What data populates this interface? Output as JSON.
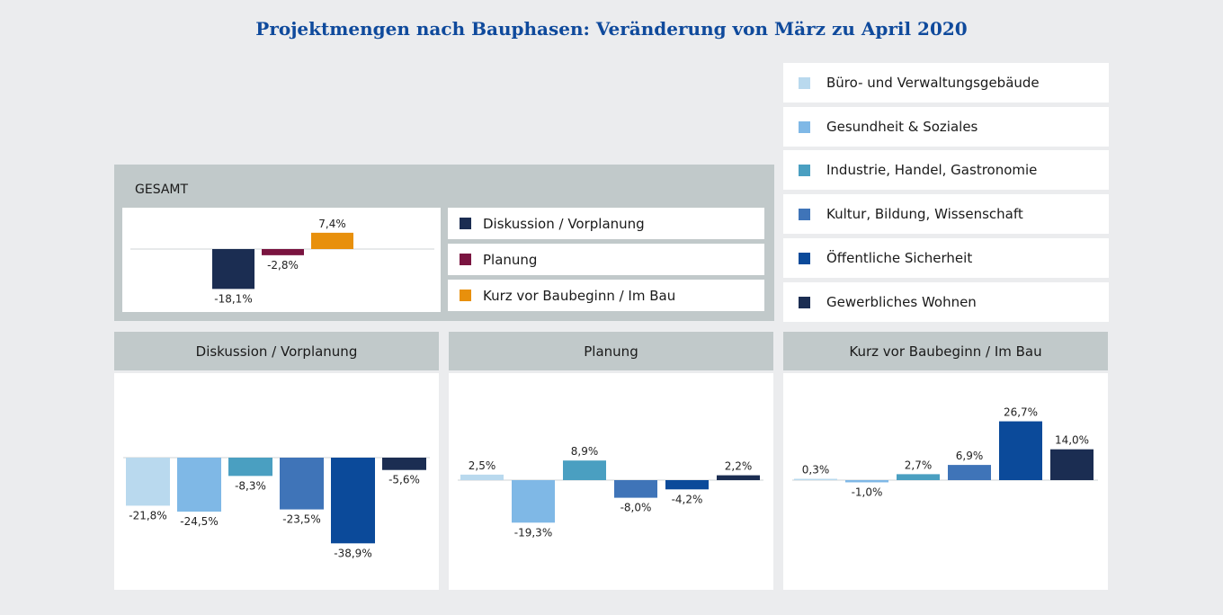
{
  "title": "Projektmengen nach Bauphasen: Veränderung von März zu April 2020",
  "legend": [
    {
      "label": "Büro- und Verwaltungsgebäude",
      "color": "#b9d9ee"
    },
    {
      "label": "Gesundheit & Soziales",
      "color": "#7fb8e6"
    },
    {
      "label": "Industrie, Handel, Gastronomie",
      "color": "#4a9fc1"
    },
    {
      "label": "Kultur, Bildung, Wissenschaft",
      "color": "#3f74b8"
    },
    {
      "label": "Öffentliche Sicherheit",
      "color": "#0b4a9a"
    },
    {
      "label": "Gewerbliches Wohnen",
      "color": "#1b2d52"
    }
  ],
  "chart_data": [
    {
      "type": "bar",
      "title": "GESAMT",
      "categories": [
        "Diskussion / Vorplanung",
        "Planung",
        "Kurz vor  Baubeginn / Im Bau"
      ],
      "colors": [
        "#1b2d52",
        "#7a1440",
        "#e8900c"
      ],
      "values": [
        -18.1,
        -2.8,
        7.4
      ],
      "labels": [
        "-18,1%",
        "-2,8%",
        "7,4%"
      ],
      "legend": "right"
    },
    {
      "type": "bar",
      "title": "Diskussion / Vorplanung",
      "categories": [
        "Büro- und Verwaltungsgebäude",
        "Gesundheit & Soziales",
        "Industrie, Handel, Gastronomie",
        "Kultur, Bildung, Wissenschaft",
        "Öffentliche Sicherheit",
        "Gewerbliches Wohnen"
      ],
      "values": [
        -21.8,
        -24.5,
        -8.3,
        -23.5,
        -38.9,
        -5.6
      ],
      "labels": [
        "-21,8%",
        "-24,5%",
        "-8,3%",
        "-23,5%",
        "-38,9%",
        "-5,6%"
      ]
    },
    {
      "type": "bar",
      "title": "Planung",
      "categories": [
        "Büro- und Verwaltungsgebäude",
        "Gesundheit & Soziales",
        "Industrie, Handel, Gastronomie",
        "Kultur, Bildung, Wissenschaft",
        "Öffentliche Sicherheit",
        "Gewerbliches Wohnen"
      ],
      "values": [
        2.5,
        -19.3,
        8.9,
        -8.0,
        -4.2,
        2.2
      ],
      "labels": [
        "2,5%",
        "-19,3%",
        "8,9%",
        "-8,0%",
        "-4,2%",
        "2,2%"
      ]
    },
    {
      "type": "bar",
      "title": "Kurz vor Baubeginn / Im Bau",
      "categories": [
        "Büro- und Verwaltungsgebäude",
        "Gesundheit & Soziales",
        "Industrie, Handel, Gastronomie",
        "Kultur, Bildung, Wissenschaft",
        "Öffentliche Sicherheit",
        "Gewerbliches Wohnen"
      ],
      "values": [
        0.3,
        -1.0,
        2.7,
        6.9,
        26.7,
        14.0
      ],
      "labels": [
        "0,3%",
        "-1,0%",
        "2,7%",
        "6,9%",
        "26,7%",
        "14,0%"
      ]
    }
  ]
}
